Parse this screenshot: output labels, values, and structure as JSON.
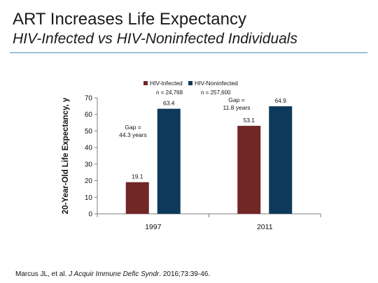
{
  "slide": {
    "title": "ART Increases Life Expectancy",
    "subtitle": "HIV-Infected vs HIV-Noninfected Individuals",
    "citation": {
      "authors": "Marcus JL, et al. ",
      "journal": "J Acquir Immune Defic Syndr",
      "details": ". 2016;73:39-46."
    }
  },
  "chart_data": {
    "type": "bar",
    "categories": [
      "1997",
      "2011"
    ],
    "series": [
      {
        "name": "HIV-Infected",
        "color": "#722626",
        "values": [
          19.1,
          53.1
        ],
        "n_label": "n = 24,768"
      },
      {
        "name": "HIV-Noninfected",
        "color": "#0d3a5a",
        "values": [
          63.4,
          64.9
        ],
        "n_label": "n = 257,600"
      }
    ],
    "ylabel": "20-Year-Old Life Expectancy, y",
    "ylim": [
      0,
      70
    ],
    "yticks": [
      0,
      10,
      20,
      30,
      40,
      50,
      60,
      70
    ],
    "data_labels": [
      "19.1",
      "63.4",
      "53.1",
      "64.9"
    ],
    "annotations": [
      {
        "category": "1997",
        "lines": [
          "Gap =",
          "44.3 years"
        ]
      },
      {
        "category": "2011",
        "lines": [
          "Gap =",
          "11.8 years"
        ]
      }
    ],
    "legend_position": "top",
    "grid": false
  }
}
